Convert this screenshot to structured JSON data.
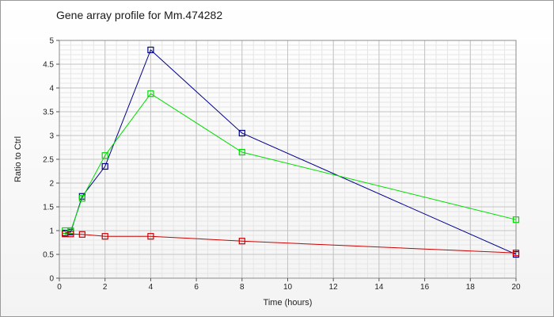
{
  "chart_data": {
    "type": "line",
    "title": "Gene array profile for Mm.474282",
    "xlabel": "Time (hours)",
    "ylabel": "Ratio to Ctrl",
    "xlim": [
      0,
      20
    ],
    "ylim": [
      0,
      5
    ],
    "x_ticks": [
      0,
      2,
      4,
      6,
      8,
      10,
      12,
      14,
      16,
      18,
      20
    ],
    "y_ticks": [
      0,
      0.5,
      1,
      1.5,
      2,
      2.5,
      3,
      3.5,
      4,
      4.5,
      5
    ],
    "y_tick_labels": [
      "0",
      "0.5",
      "1",
      "1.5",
      "2",
      "2.5",
      "3",
      "3.5",
      "4",
      "4.5",
      "5"
    ],
    "grid": true,
    "legend": "none",
    "series": [
      {
        "color": "#00008b",
        "x": [
          0.25,
          0.5,
          1,
          2,
          4,
          8,
          20
        ],
        "y": [
          0.95,
          0.97,
          1.72,
          2.35,
          4.8,
          3.05,
          0.5
        ]
      },
      {
        "color": "#00dd00",
        "x": [
          0.25,
          0.5,
          1,
          2,
          4,
          8,
          20
        ],
        "y": [
          1.0,
          1.0,
          1.68,
          2.58,
          3.88,
          2.65,
          1.23
        ]
      },
      {
        "color": "#cc0000",
        "x": [
          0.25,
          0.5,
          1,
          2,
          4,
          8,
          20
        ],
        "y": [
          0.93,
          0.93,
          0.92,
          0.88,
          0.88,
          0.78,
          0.53
        ]
      }
    ]
  }
}
